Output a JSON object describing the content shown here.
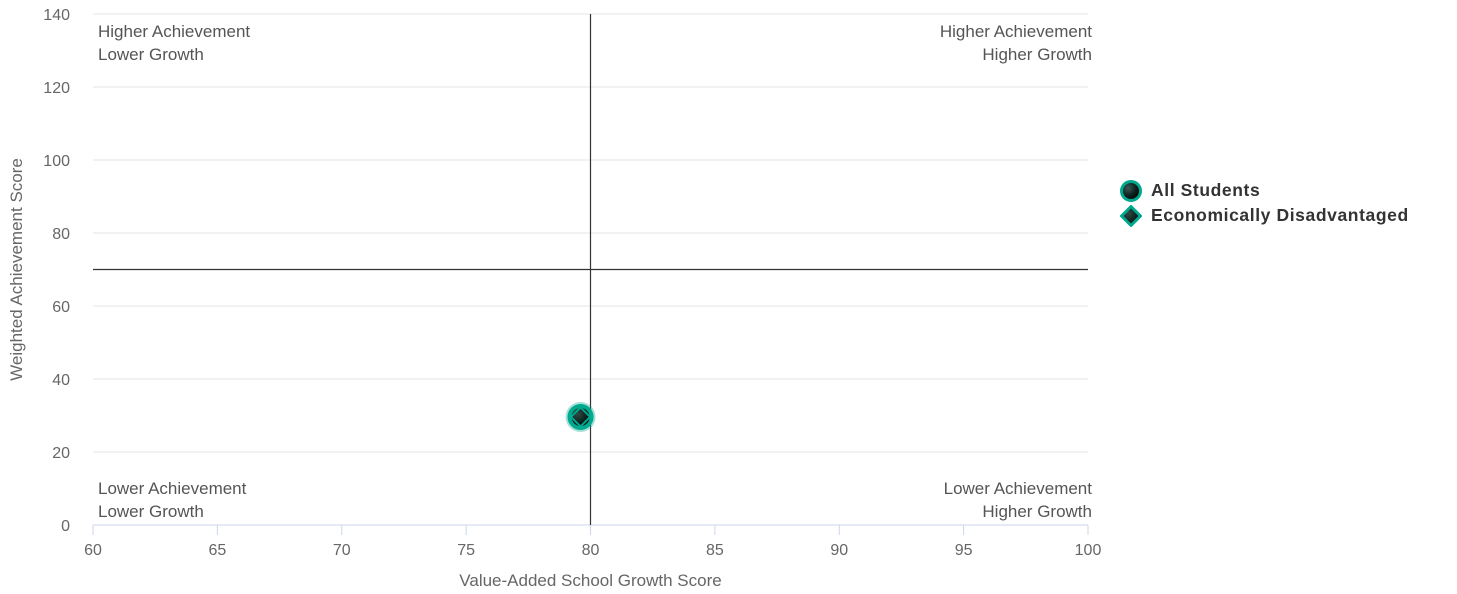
{
  "chart_data": {
    "type": "scatter",
    "xlabel": "Value-Added School Growth Score",
    "ylabel": "Weighted Achievement Score",
    "xlim": [
      60,
      100
    ],
    "ylim": [
      0,
      140
    ],
    "x_ticks": [
      60,
      65,
      70,
      75,
      80,
      85,
      90,
      95,
      100
    ],
    "y_ticks": [
      0,
      20,
      40,
      60,
      80,
      100,
      120,
      140
    ],
    "grid": "horizontal",
    "reference_lines": {
      "x": 80,
      "y": 70
    },
    "quadrant_labels": {
      "top_left": [
        "Higher Achievement",
        "Lower Growth"
      ],
      "top_right": [
        "Higher Achievement",
        "Higher Growth"
      ],
      "bottom_left": [
        "Lower Achievement",
        "Lower Growth"
      ],
      "bottom_right": [
        "Lower Achievement",
        "Higher Growth"
      ]
    },
    "series": [
      {
        "name": "All Students",
        "marker": "circle",
        "points": [
          {
            "x": 79.6,
            "y": 29.6
          }
        ]
      },
      {
        "name": "Economically Disadvantaged",
        "marker": "diamond",
        "points": [
          {
            "x": 79.6,
            "y": 29.6
          }
        ]
      }
    ],
    "legend_position": "right"
  },
  "colors": {
    "marker_fill": "#00A88E",
    "marker_dark": "#0B1F1C",
    "grid": "#E6E6E6",
    "reference_line": "#333333",
    "axis_line": "#CCD6EB"
  }
}
